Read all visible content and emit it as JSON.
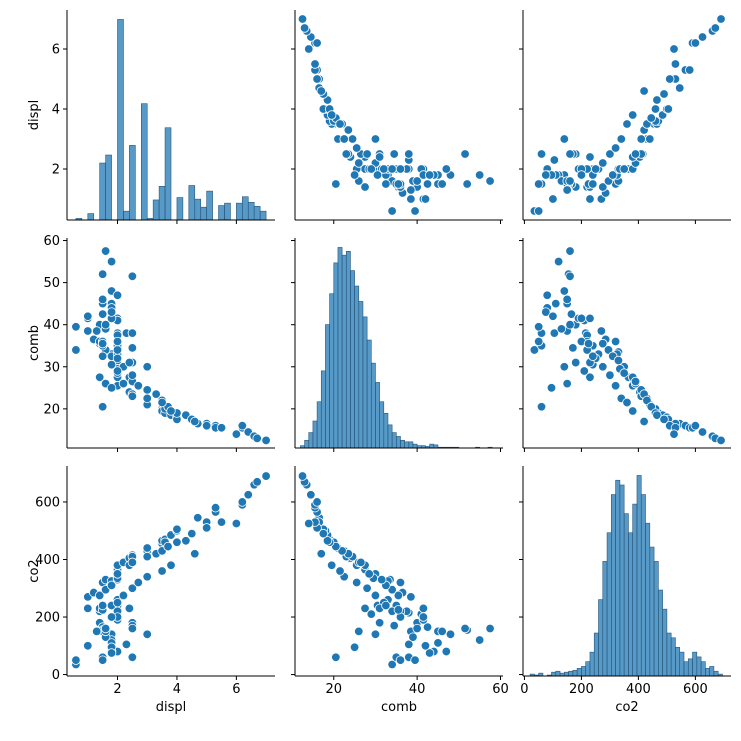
{
  "chart_data": {
    "type": "scatter",
    "variables": [
      "displ",
      "comb",
      "co2"
    ],
    "colors": {
      "fill": "#1f77b4",
      "edge": "#ffffff",
      "bar_edge": "#28567a"
    },
    "axes": {
      "displ": {
        "label": "displ",
        "lim": [
          0.3,
          7.3
        ],
        "ticks": [
          2,
          4,
          6
        ],
        "tick_labels": [
          "2",
          "4",
          "6"
        ]
      },
      "comb": {
        "label": "comb",
        "lim": [
          10.7,
          60.6
        ],
        "ticks": [
          20,
          30,
          40,
          50,
          60
        ],
        "tick_labels": [
          "20",
          "30",
          "40",
          "50",
          "60"
        ],
        "x_ticks": [
          20,
          40,
          60
        ],
        "x_tick_labels": [
          "20",
          "40",
          "60"
        ]
      },
      "co2": {
        "label": "co2",
        "lim": [
          -5,
          725
        ],
        "ticks": [
          0,
          200,
          400,
          600
        ],
        "tick_labels": [
          "0",
          "200",
          "400",
          "600"
        ]
      }
    },
    "histograms": {
      "displ": {
        "bin_edges": [
          0.6,
          0.8,
          1.0,
          1.2,
          1.4,
          1.6,
          1.8,
          2.0,
          2.2,
          2.4,
          2.6,
          2.8,
          3.0,
          3.2,
          3.4,
          3.6,
          3.8,
          4.0,
          4.2,
          4.4,
          4.6,
          4.8,
          5.0,
          5.2,
          5.4,
          5.6,
          5.8,
          6.0,
          6.2,
          6.4,
          6.6,
          6.8,
          7.0
        ],
        "values": [
          2,
          0,
          8,
          0,
          71,
          81,
          0,
          250,
          11,
          93,
          0,
          145,
          2,
          25,
          42,
          115,
          0,
          28,
          0,
          43,
          26,
          16,
          36,
          0,
          18,
          21,
          0,
          21,
          29,
          22,
          17,
          11
        ]
      },
      "comb": {
        "bin_edges": [
          12,
          13,
          14,
          15,
          16,
          17,
          18,
          19,
          20,
          21,
          22,
          23,
          24,
          25,
          26,
          27,
          28,
          29,
          30,
          31,
          32,
          33,
          34,
          35,
          36,
          37,
          38,
          39,
          40,
          41,
          42,
          43,
          44,
          45,
          46,
          47,
          48,
          49,
          50,
          51,
          52,
          53,
          54,
          55,
          56,
          57,
          58
        ],
        "values": [
          3,
          10,
          20,
          35,
          60,
          100,
          160,
          200,
          240,
          260,
          250,
          255,
          230,
          210,
          190,
          170,
          140,
          110,
          85,
          60,
          45,
          30,
          20,
          15,
          10,
          8,
          8,
          5,
          3,
          3,
          2,
          5,
          4,
          1,
          1,
          1,
          1,
          1,
          0,
          0,
          0,
          0,
          1,
          0,
          0,
          1
        ]
      },
      "co2": {
        "bin_edges": [
          20,
          35,
          50,
          65,
          80,
          95,
          110,
          125,
          140,
          155,
          170,
          185,
          200,
          215,
          230,
          245,
          260,
          275,
          290,
          305,
          320,
          335,
          350,
          365,
          380,
          395,
          410,
          425,
          440,
          455,
          470,
          485,
          500,
          515,
          530,
          545,
          560,
          575,
          590,
          605,
          620,
          635,
          650,
          665,
          680,
          695
        ],
        "values": [
          2,
          1,
          3,
          0,
          1,
          4,
          5,
          3,
          4,
          5,
          6,
          8,
          10,
          15,
          25,
          45,
          80,
          120,
          150,
          190,
          205,
          200,
          170,
          150,
          180,
          210,
          190,
          160,
          135,
          120,
          90,
          70,
          45,
          40,
          30,
          25,
          15,
          18,
          25,
          20,
          15,
          8,
          10,
          5,
          2
        ]
      }
    },
    "points": {
      "displ": [
        1.5,
        1.6,
        1.8,
        2.0,
        2.0,
        2.0,
        2.2,
        2.4,
        2.5,
        2.5,
        3.0,
        3.0,
        3.5,
        3.5,
        3.6,
        3.6,
        3.8,
        4.0,
        4.0,
        4.7,
        5.0,
        5.3,
        5.3,
        6.2,
        6.2,
        6.4,
        6.6,
        6.7,
        7.0,
        1.0,
        1.2,
        1.4,
        1.6,
        1.8,
        2.0,
        2.0,
        2.0,
        2.4,
        2.5,
        3.0,
        3.3,
        3.5,
        3.7,
        4.0,
        4.3,
        4.5,
        5.0,
        5.5,
        1.4,
        1.5,
        1.5,
        1.5,
        1.8,
        1.8,
        2.0,
        2.0,
        2.0,
        2.0,
        2.0,
        2.0,
        2.2,
        2.5,
        2.7,
        3.0,
        3.5,
        3.8,
        4.6,
        6.0,
        1.5,
        1.6,
        2.0,
        2.3,
        3.0,
        0.6,
        1.0,
        1.3,
        1.6,
        1.8,
        1.8,
        2.5,
        1.4,
        1.4,
        2.0,
        1.6,
        1.5,
        1.8,
        1.8,
        2.0,
        2.0,
        2.0,
        2.5,
        2.5,
        1.5,
        1.5,
        1.6,
        1.8,
        1.8,
        2.4,
        0.6,
        1.0,
        1.5,
        1.5,
        2.5
      ],
      "comb": [
        36.0,
        33.5,
        33.0,
        30.0,
        27.5,
        25.5,
        26.0,
        24.0,
        23.5,
        23.0,
        22.5,
        21.0,
        20.0,
        19.5,
        19.0,
        20.0,
        18.5,
        18.0,
        17.5,
        16.5,
        16.5,
        16.0,
        15.5,
        15.5,
        16.0,
        14.5,
        13.5,
        13.0,
        12.5,
        38.5,
        36.5,
        35.5,
        34.0,
        32.5,
        31.5,
        29.5,
        28.5,
        27.5,
        26.5,
        24.5,
        23.5,
        22.0,
        20.5,
        19.0,
        18.5,
        17.5,
        16.0,
        15.5,
        40.0,
        42.5,
        45.0,
        52.0,
        48.0,
        55.0,
        41.5,
        38.0,
        41.0,
        37.5,
        35.0,
        33.0,
        30.0,
        28.0,
        25.5,
        22.5,
        21.5,
        19.5,
        17.0,
        14.0,
        46.0,
        57.5,
        47.0,
        38.0,
        30.0,
        34.0,
        41.5,
        38.5,
        39.0,
        45.0,
        44.0,
        38.0,
        36.0,
        27.5,
        29.0,
        26.0,
        20.5,
        25.0,
        30.5,
        32.0,
        34.0,
        36.0,
        31.0,
        34.5,
        35.0,
        36.0,
        40.0,
        41.5,
        43.0,
        31.0,
        39.5,
        42.0,
        35.5,
        32.5,
        51.5
      ],
      "co2": [
        320,
        330,
        325,
        350,
        365,
        380,
        390,
        405,
        415,
        410,
        430,
        440,
        455,
        465,
        470,
        460,
        485,
        500,
        505,
        545,
        530,
        565,
        580,
        590,
        600,
        625,
        660,
        670,
        690,
        270,
        285,
        275,
        295,
        310,
        330,
        335,
        350,
        380,
        390,
        410,
        420,
        430,
        445,
        460,
        465,
        490,
        510,
        530,
        180,
        165,
        150,
        155,
        140,
        120,
        190,
        215,
        210,
        220,
        240,
        260,
        275,
        300,
        320,
        340,
        360,
        380,
        420,
        525,
        150,
        160,
        80,
        105,
        140,
        35,
        230,
        150,
        130,
        110,
        80,
        60,
        220,
        230,
        210,
        150,
        60,
        95,
        240,
        250,
        220,
        200,
        180,
        170,
        60,
        50,
        160,
        200,
        75,
        230,
        50,
        100,
        225,
        240,
        160
      ]
    }
  }
}
